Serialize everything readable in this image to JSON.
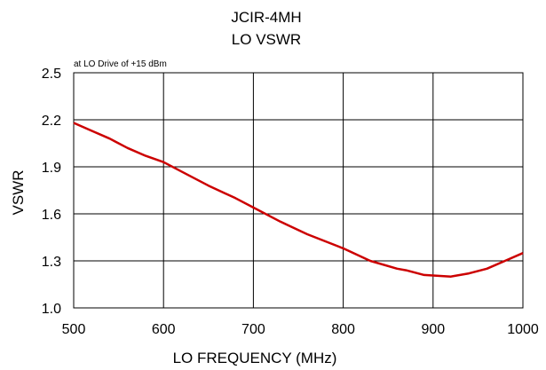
{
  "chart_data": {
    "type": "line",
    "title": "JCIR-4MH",
    "subtitle": "LO VSWR",
    "annotation": "at LO Drive of +15 dBm",
    "xlabel": "LO FREQUENCY (MHz)",
    "ylabel": "VSWR",
    "xlim": [
      500,
      1000
    ],
    "ylim": [
      1.0,
      2.5
    ],
    "x_ticks": [
      "500",
      "600",
      "700",
      "800",
      "900",
      "1000"
    ],
    "y_ticks": [
      "1.0",
      "1.3",
      "1.6",
      "1.9",
      "2.2",
      "2.5"
    ],
    "grid": true,
    "line_color": "#cc0000",
    "series": [
      {
        "x": [
          500,
          520,
          540,
          560,
          580,
          600,
          620,
          650,
          680,
          700,
          730,
          760,
          800,
          830,
          860,
          870,
          890,
          920,
          940,
          960,
          980,
          1000
        ],
        "y": [
          2.18,
          2.13,
          2.08,
          2.02,
          1.97,
          1.93,
          1.87,
          1.78,
          1.7,
          1.64,
          1.55,
          1.47,
          1.38,
          1.3,
          1.25,
          1.24,
          1.21,
          1.2,
          1.22,
          1.25,
          1.3,
          1.35
        ]
      }
    ]
  }
}
